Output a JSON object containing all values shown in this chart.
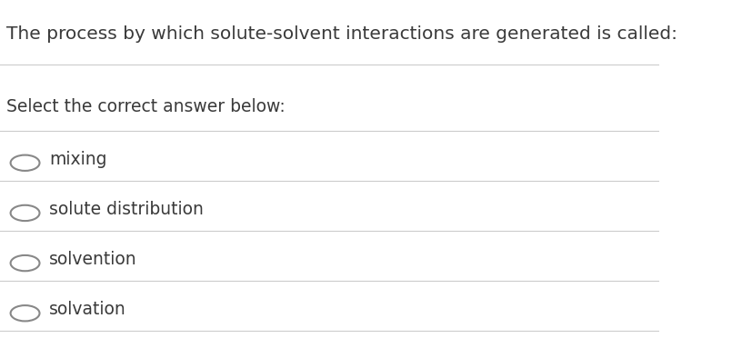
{
  "title": "The process by which solute-solvent interactions are generated is called:",
  "subtitle": "Select the correct answer below:",
  "options": [
    "mixing",
    "solute distribution",
    "solvention",
    "solvation"
  ],
  "title_color": "#3a3a3a",
  "subtitle_color": "#3a3a3a",
  "option_color": "#3a3a3a",
  "circle_color": "#888888",
  "line_color": "#cccccc",
  "background_color": "#ffffff",
  "title_fontsize": 14.5,
  "subtitle_fontsize": 13.5,
  "option_fontsize": 13.5,
  "fig_width": 8.28,
  "fig_height": 3.94
}
